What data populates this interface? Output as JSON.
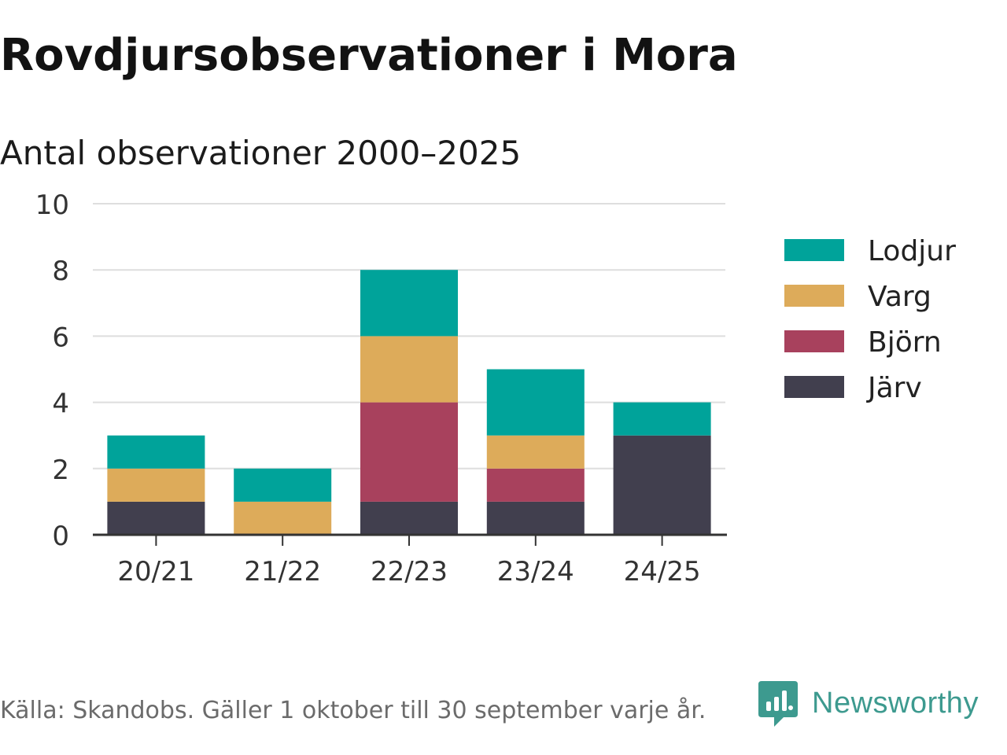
{
  "header": {
    "title": "Rovdjursobservationer i Mora",
    "subtitle": "Antal observationer 2000–2025"
  },
  "footer": {
    "source": "Källa: Skandobs. Gäller 1 oktober till 30 september varje år."
  },
  "brand": {
    "name": "Newsworthy",
    "color": "#3d9a8f"
  },
  "chart_data": {
    "type": "bar",
    "stacked": true,
    "title": "Rovdjursobservationer i Mora",
    "subtitle": "Antal observationer 2000–2025",
    "xlabel": "",
    "ylabel": "",
    "ylim": [
      0,
      10
    ],
    "yticks": [
      0,
      2,
      4,
      6,
      8,
      10
    ],
    "grid": true,
    "legend": "right",
    "categories": [
      "20/21",
      "21/22",
      "22/23",
      "23/24",
      "24/25"
    ],
    "series": [
      {
        "name": "Järv",
        "color": "#413f4e",
        "values": [
          1,
          0,
          1,
          1,
          3
        ]
      },
      {
        "name": "Björn",
        "color": "#a8415d",
        "values": [
          0,
          0,
          3,
          1,
          0
        ]
      },
      {
        "name": "Varg",
        "color": "#ddab5a",
        "values": [
          1,
          1,
          2,
          1,
          0
        ]
      },
      {
        "name": "Lodjur",
        "color": "#00a39a",
        "values": [
          1,
          1,
          2,
          2,
          1
        ]
      }
    ],
    "legend_order": [
      "Lodjur",
      "Varg",
      "Björn",
      "Järv"
    ]
  }
}
